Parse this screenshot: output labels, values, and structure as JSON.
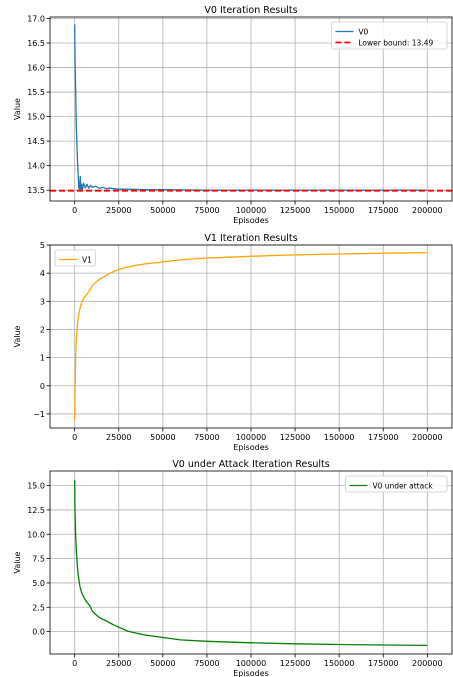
{
  "chart_data": [
    {
      "type": "line",
      "title": "V0 Iteration Results",
      "xlabel": "Episodes",
      "ylabel": "Value",
      "xlim": [
        -14000,
        214000
      ],
      "ylim": [
        13.28,
        17.03
      ],
      "xticks": [
        0,
        25000,
        50000,
        75000,
        100000,
        125000,
        150000,
        175000,
        200000
      ],
      "yticks": [
        13.5,
        14.0,
        14.5,
        15.0,
        15.5,
        16.0,
        16.5,
        17.0
      ],
      "ytick_labels": [
        "13.5",
        "14.0",
        "14.5",
        "15.0",
        "15.5",
        "16.0",
        "16.5",
        "17.0"
      ],
      "grid": true,
      "legend_position": "top-right",
      "series": [
        {
          "name": "V0",
          "color": "#1f77b4",
          "style": "solid",
          "x": [
            0,
            200,
            500,
            800,
            1200,
            1600,
            2000,
            2400,
            2800,
            3200,
            3600,
            4000,
            4500,
            5000,
            6000,
            7000,
            8000,
            9000,
            10000,
            12000,
            14000,
            16000,
            18000,
            20000,
            25000,
            30000,
            40000,
            50000,
            75000,
            100000,
            125000,
            150000,
            175000,
            200000
          ],
          "y": [
            16.88,
            16.2,
            15.6,
            15.0,
            14.5,
            14.1,
            13.8,
            13.55,
            13.52,
            13.78,
            13.5,
            13.62,
            13.52,
            13.64,
            13.55,
            13.62,
            13.54,
            13.6,
            13.56,
            13.58,
            13.54,
            13.56,
            13.53,
            13.54,
            13.52,
            13.52,
            13.51,
            13.51,
            13.5,
            13.5,
            13.5,
            13.5,
            13.5,
            13.5
          ]
        },
        {
          "name": "Lower bound: 13.49",
          "color": "#ff0000",
          "style": "dashed",
          "x": [
            -14000,
            214000
          ],
          "y": [
            13.49,
            13.49
          ]
        }
      ]
    },
    {
      "type": "line",
      "title": "V1 Iteration Results",
      "xlabel": "Episodes",
      "ylabel": "Value",
      "xlim": [
        -14000,
        214000
      ],
      "ylim": [
        -1.5,
        5.0
      ],
      "xticks": [
        0,
        25000,
        50000,
        75000,
        100000,
        125000,
        150000,
        175000,
        200000
      ],
      "yticks": [
        -1,
        0,
        1,
        2,
        3,
        4,
        5
      ],
      "ytick_labels": [
        "−1",
        "0",
        "1",
        "2",
        "3",
        "4",
        "5"
      ],
      "grid": true,
      "legend_position": "top-left",
      "series": [
        {
          "name": "V1",
          "color": "#ffa500",
          "style": "solid",
          "x": [
            0,
            300,
            600,
            1000,
            1500,
            2000,
            3000,
            4000,
            5000,
            6000,
            7000,
            8000,
            9000,
            10000,
            12000,
            14000,
            16000,
            18000,
            20000,
            23000,
            26000,
            30000,
            35000,
            40000,
            50000,
            60000,
            75000,
            100000,
            125000,
            150000,
            175000,
            200000
          ],
          "y": [
            -1.2,
            0.2,
            1.1,
            1.7,
            2.1,
            2.4,
            2.75,
            2.95,
            3.1,
            3.18,
            3.25,
            3.35,
            3.45,
            3.55,
            3.68,
            3.78,
            3.85,
            3.92,
            4.0,
            4.08,
            4.15,
            4.22,
            4.28,
            4.33,
            4.4,
            4.47,
            4.54,
            4.6,
            4.65,
            4.68,
            4.71,
            4.73
          ]
        }
      ]
    },
    {
      "type": "line",
      "title": "V0 under Attack Iteration Results",
      "xlabel": "Episodes",
      "ylabel": "Value",
      "xlim": [
        -14000,
        214000
      ],
      "ylim": [
        -2.3,
        16.5
      ],
      "xticks": [
        0,
        25000,
        50000,
        75000,
        100000,
        125000,
        150000,
        175000,
        200000
      ],
      "yticks": [
        0.0,
        2.5,
        5.0,
        7.5,
        10.0,
        12.5,
        15.0
      ],
      "ytick_labels": [
        "0.0",
        "2.5",
        "5.0",
        "7.5",
        "10.0",
        "12.5",
        "15.0"
      ],
      "grid": true,
      "legend_position": "top-right",
      "series": [
        {
          "name": "V0 under attack",
          "color": "#008000",
          "style": "solid",
          "x": [
            0,
            200,
            500,
            1000,
            1500,
            2000,
            3000,
            4000,
            5000,
            6000,
            7000,
            8000,
            9000,
            10000,
            12000,
            14000,
            16000,
            18000,
            20000,
            22000,
            25000,
            28000,
            30000,
            35000,
            40000,
            50000,
            60000,
            75000,
            100000,
            125000,
            150000,
            175000,
            200000
          ],
          "y": [
            15.6,
            12.5,
            10.0,
            8.2,
            6.8,
            5.8,
            4.6,
            4.0,
            3.6,
            3.25,
            3.0,
            2.8,
            2.5,
            2.1,
            1.75,
            1.45,
            1.25,
            1.1,
            0.9,
            0.7,
            0.45,
            0.22,
            0.05,
            -0.15,
            -0.35,
            -0.6,
            -0.85,
            -1.0,
            -1.15,
            -1.25,
            -1.32,
            -1.38,
            -1.42
          ]
        }
      ]
    }
  ]
}
